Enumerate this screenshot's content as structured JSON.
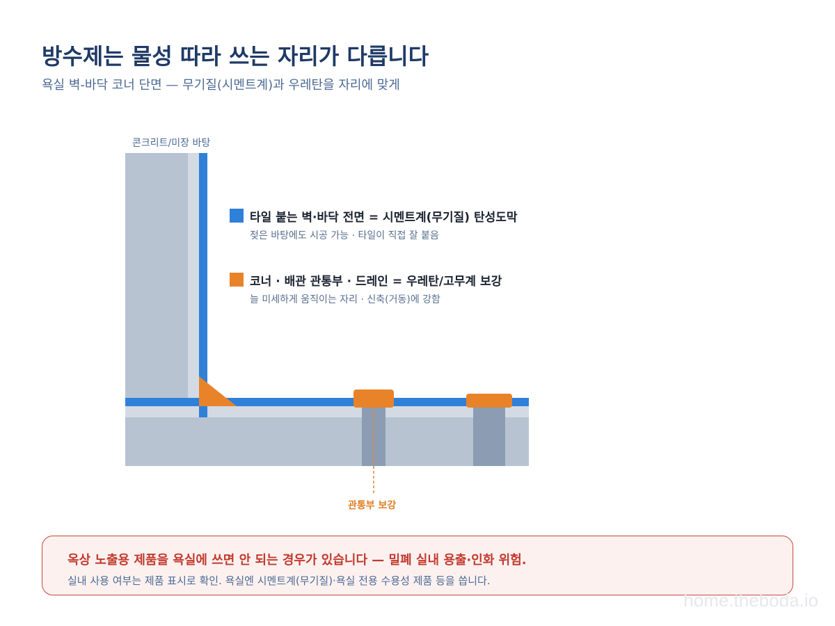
{
  "header": {
    "title": "방수제는 물성 따라 쓰는 자리가 다릅니다",
    "subtitle": "욕실 벽-바닥 코너 단면 — 무기질(시멘트계)과 우레탄을 자리에 맞게"
  },
  "diagram": {
    "base_label": "콘크리트/미장 바탕",
    "callout_label": "관통부 보강",
    "colors": {
      "concrete": "#b8c3d1",
      "mortar": "#d3dae3",
      "cement_membrane": "#2f80d8",
      "urethane": "#e8832a",
      "pipe": "#8c9db3"
    }
  },
  "legend": {
    "items": [
      {
        "label": "타일 붙는 벽·바닥 전면 = 시멘트계(무기질) 탄성도막",
        "note": "젖은 바탕에도 시공 가능 · 타일이 직접 잘 붙음",
        "color": "#2f80d8"
      },
      {
        "label": "코너 · 배관 관통부 · 드레인 = 우레탄/고무계 보강",
        "note": "늘 미세하게 움직이는 자리 · 신축(거동)에 강함",
        "color": "#e8832a"
      }
    ]
  },
  "warning": {
    "title": "옥상 노출용 제품을 욕실에 쓰면 안 되는 경우가 있습니다 — 밀폐 실내 용출·인화 위험.",
    "note": "실내 사용 여부는 제품 표시로 확인. 욕실엔 시멘트계(무기질)·욕실 전용 수용성 제품 등을 씁니다."
  },
  "watermark": "home.theboda.io"
}
